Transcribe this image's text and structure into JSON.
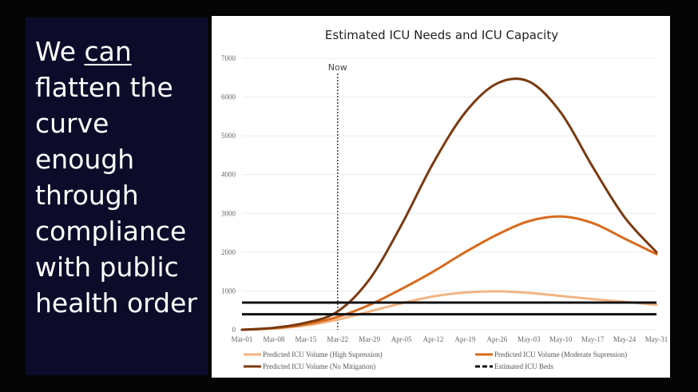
{
  "headline": {
    "line1_prefix": "We ",
    "line1_underlined": "can",
    "rest": [
      "flatten the",
      "curve",
      "enough",
      "through",
      "compliance",
      "with public",
      "health order"
    ]
  },
  "chart_data": {
    "type": "line",
    "title": "Estimated ICU Needs and ICU Capacity",
    "categories": [
      "Mar-01",
      "Mar-08",
      "Mar-15",
      "Mar-22",
      "Mar-29",
      "Apr-05",
      "Apr-12",
      "Apr-19",
      "Apr-26",
      "May-03",
      "May-10",
      "May-17",
      "May-24",
      "May-31"
    ],
    "ylim": [
      0,
      7000
    ],
    "yticks": [
      0,
      1000,
      2000,
      3000,
      4000,
      5000,
      6000,
      7000
    ],
    "annotation": {
      "label": "Now",
      "category": "Mar-22"
    },
    "series": [
      {
        "name": "Predicted ICU Volume (High Supression)",
        "color": "#f2b482",
        "style": "solid",
        "values": [
          0,
          30,
          110,
          260,
          470,
          680,
          860,
          960,
          990,
          950,
          870,
          790,
          720,
          640
        ]
      },
      {
        "name": "Predicted ICU Volume (Moderate Supression)",
        "color": "#d86a1c",
        "style": "solid",
        "values": [
          0,
          40,
          140,
          330,
          640,
          1050,
          1500,
          2000,
          2450,
          2800,
          2920,
          2750,
          2350,
          1950
        ]
      },
      {
        "name": "Predicted ICU Volume (No Mitigation)",
        "color": "#7a3a10",
        "style": "solid",
        "values": [
          0,
          50,
          180,
          470,
          1300,
          2700,
          4300,
          5600,
          6350,
          6400,
          5600,
          4200,
          2900,
          2000
        ]
      },
      {
        "name": "Estimated ICU Beds",
        "color": "#111111",
        "style": "dashed",
        "values": [
          400,
          400,
          400,
          400,
          400,
          400,
          400,
          400,
          400,
          400,
          400,
          400,
          400,
          400
        ]
      },
      {
        "name": "",
        "color": "#111111",
        "style": "solid",
        "values": [
          700,
          700,
          700,
          700,
          700,
          700,
          700,
          700,
          700,
          700,
          700,
          700,
          700,
          700
        ]
      }
    ],
    "legend_position": "bottom"
  }
}
